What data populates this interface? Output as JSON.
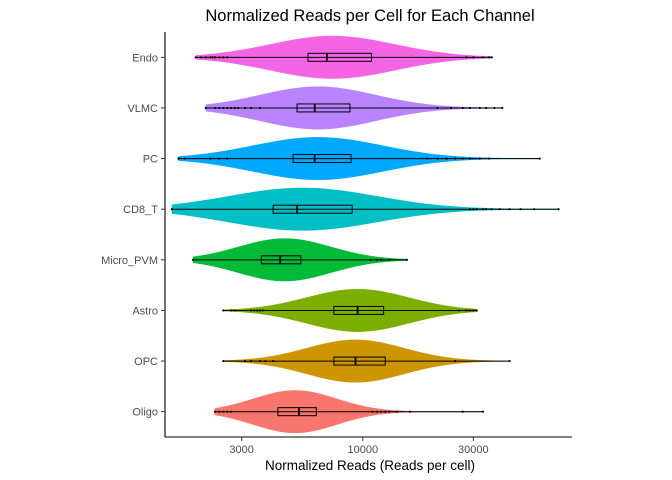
{
  "chart_data": {
    "type": "violin",
    "orientation": "horizontal",
    "title": "Normalized Reads per Cell for Each Channel",
    "xlabel": "Normalized Reads (Reads per cell)",
    "ylabel": "",
    "x_scale": "log10",
    "xlim": [
      1400,
      80000
    ],
    "x_ticks": [
      3000,
      10000,
      30000
    ],
    "x_tick_labels": [
      "3000",
      "10000",
      "30000"
    ],
    "grid": false,
    "legend": "none",
    "categories": [
      "Endo",
      "VLMC",
      "PC",
      "CD8_T",
      "Micro_PVM",
      "Astro",
      "OPC",
      "Oligo"
    ],
    "series": [
      {
        "category": "Endo",
        "color": "#F564E3",
        "min": 1900,
        "q1": 5800,
        "median": 7000,
        "q3": 10900,
        "max": 36000,
        "outliers": [
          1900,
          2000,
          2100,
          2200,
          2250,
          2300,
          2400,
          2500,
          2600,
          28000,
          30000,
          33000,
          35000,
          36000
        ],
        "violin_center": 7400,
        "violin_spread": 0.27
      },
      {
        "category": "VLMC",
        "color": "#B983FF",
        "min": 2100,
        "q1": 5200,
        "median": 6200,
        "q3": 8800,
        "max": 40000,
        "outliers": [
          2100,
          2300,
          2400,
          2500,
          2600,
          2700,
          2800,
          2900,
          3100,
          3300,
          3600,
          21000,
          24000,
          27000,
          29000,
          32000,
          34000,
          37000,
          40000
        ],
        "violin_center": 6400,
        "violin_spread": 0.25
      },
      {
        "category": "PC",
        "color": "#00A9FF",
        "min": 1600,
        "q1": 5000,
        "median": 6200,
        "q3": 8900,
        "max": 58000,
        "outliers": [
          1600,
          1700,
          2200,
          2400,
          2600,
          19000,
          21000,
          23000,
          25000,
          27000,
          29000,
          32000,
          35000,
          58000
        ],
        "violin_center": 6400,
        "violin_spread": 0.28
      },
      {
        "category": "CD8_T",
        "color": "#00BFC4",
        "min": 1500,
        "q1": 4100,
        "median": 5200,
        "q3": 9000,
        "max": 70000,
        "outliers": [
          1500,
          29000,
          30000,
          31000,
          33000,
          34000,
          36000,
          39000,
          43000,
          48000,
          55000,
          70000
        ],
        "violin_center": 5500,
        "violin_spread": 0.32
      },
      {
        "category": "Micro_PVM",
        "color": "#00BA38",
        "min": 1850,
        "q1": 3650,
        "median": 4400,
        "q3": 5400,
        "max": 15500,
        "outliers": [
          1850,
          10800,
          11500,
          12000,
          13000,
          15500
        ],
        "violin_center": 4600,
        "violin_spread": 0.2
      },
      {
        "category": "Astro",
        "color": "#7CAE00",
        "min": 2500,
        "q1": 7500,
        "median": 9500,
        "q3": 12300,
        "max": 31000,
        "outliers": [
          2500,
          2700,
          2800,
          3300,
          3400,
          3500,
          3600,
          3700,
          26000,
          28000,
          29000,
          30000,
          31000
        ],
        "violin_center": 9500,
        "violin_spread": 0.22
      },
      {
        "category": "OPC",
        "color": "#CD9600",
        "min": 2500,
        "q1": 7500,
        "median": 9300,
        "q3": 12500,
        "max": 43000,
        "outliers": [
          2500,
          3100,
          3300,
          3600,
          3800,
          4100,
          25000,
          43000
        ],
        "violin_center": 9300,
        "violin_spread": 0.21
      },
      {
        "category": "Oligo",
        "color": "#F8766D",
        "min": 2300,
        "q1": 4300,
        "median": 5300,
        "q3": 6300,
        "max": 33000,
        "outliers": [
          2300,
          2400,
          2500,
          2600,
          2700,
          11000,
          11500,
          12000,
          12500,
          13000,
          14000,
          16000,
          27000,
          33000
        ],
        "violin_center": 5100,
        "violin_spread": 0.18
      }
    ]
  }
}
